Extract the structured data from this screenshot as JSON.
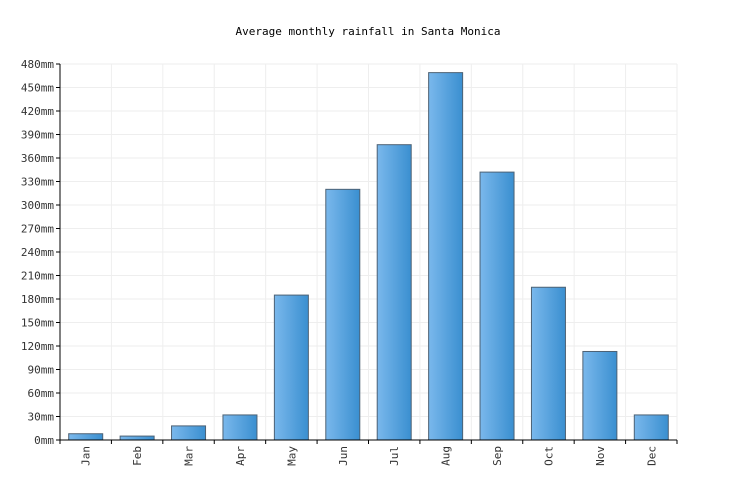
{
  "chart_data": {
    "type": "bar",
    "title": "Average monthly rainfall in Santa Monica",
    "xlabel": "",
    "ylabel": "",
    "categories": [
      "Jan",
      "Feb",
      "Mar",
      "Apr",
      "May",
      "Jun",
      "Jul",
      "Aug",
      "Sep",
      "Oct",
      "Nov",
      "Dec"
    ],
    "values": [
      8,
      5,
      18,
      32,
      185,
      320,
      377,
      469,
      342,
      195,
      113,
      32
    ],
    "ylim": [
      0,
      480
    ],
    "yticks": [
      "0mm",
      "30mm",
      "60mm",
      "90mm",
      "120mm",
      "150mm",
      "180mm",
      "210mm",
      "240mm",
      "270mm",
      "300mm",
      "330mm",
      "360mm",
      "390mm",
      "420mm",
      "450mm",
      "480mm"
    ],
    "ytick_values": [
      0,
      30,
      60,
      90,
      120,
      150,
      180,
      210,
      240,
      270,
      300,
      330,
      360,
      390,
      420,
      450,
      480
    ],
    "grid": true,
    "bar_color_light": "#7ab8ec",
    "bar_color_dark": "#3a8fd0",
    "bar_stroke": "#4d6275",
    "grid_color": "#eeeeee",
    "axis_color": "#000000"
  }
}
